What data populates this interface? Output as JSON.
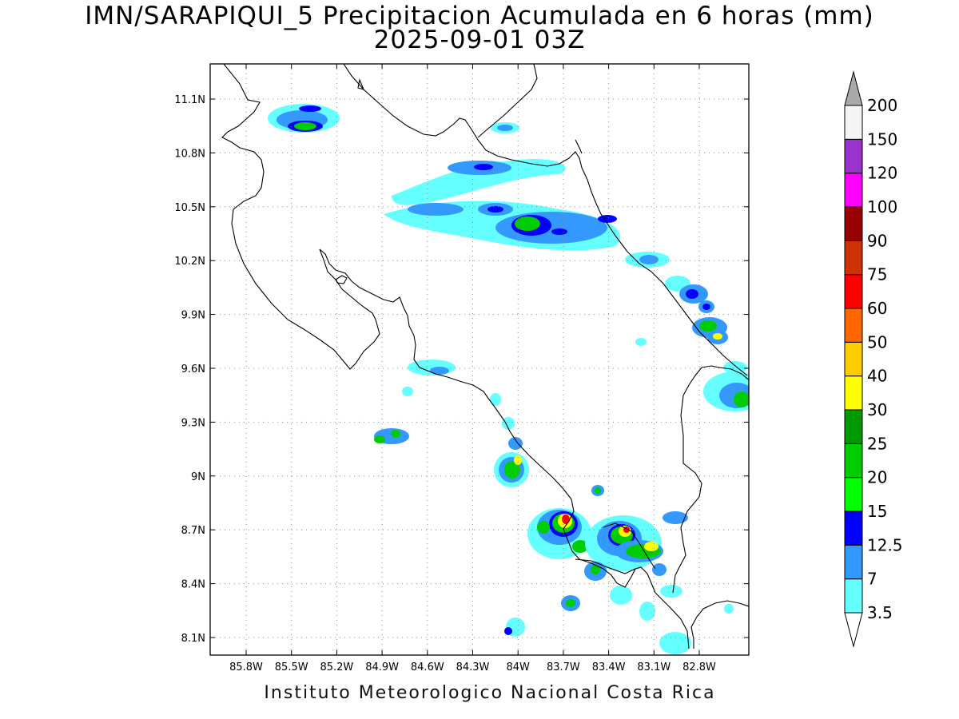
{
  "title_line1": "IMN/SARAPIQUI_5 Precipitacion Acumulada en 6 horas (mm)",
  "title_line2": "2025-09-01 03Z",
  "footer": "Instituto Meteorologico Nacional Costa Rica",
  "map": {
    "lon_ticks": [
      "85.8W",
      "85.5W",
      "85.2W",
      "84.9W",
      "84.6W",
      "84.3W",
      "84W",
      "83.7W",
      "83.4W",
      "83.1W",
      "82.8W"
    ],
    "lat_ticks": [
      "11.1N",
      "10.8N",
      "10.5N",
      "10.2N",
      "9.9N",
      "9.6N",
      "9.3N",
      "9N",
      "8.7N",
      "8.4N",
      "8.1N"
    ],
    "grid": "dotted"
  },
  "colorbar": {
    "levels": [
      "3.5",
      "7",
      "12.5",
      "15",
      "20",
      "25",
      "30",
      "40",
      "50",
      "60",
      "75",
      "90",
      "100",
      "120",
      "150",
      "200"
    ],
    "colors": [
      "#66ffff",
      "#3399ff",
      "#0000ff",
      "#00ff00",
      "#00cc00",
      "#009900",
      "#ffff00",
      "#ffcc00",
      "#ff6600",
      "#ff0000",
      "#cc3300",
      "#990000",
      "#ff00ff",
      "#9933cc",
      "#f5f5f5",
      "#aaaaaa"
    ]
  }
}
